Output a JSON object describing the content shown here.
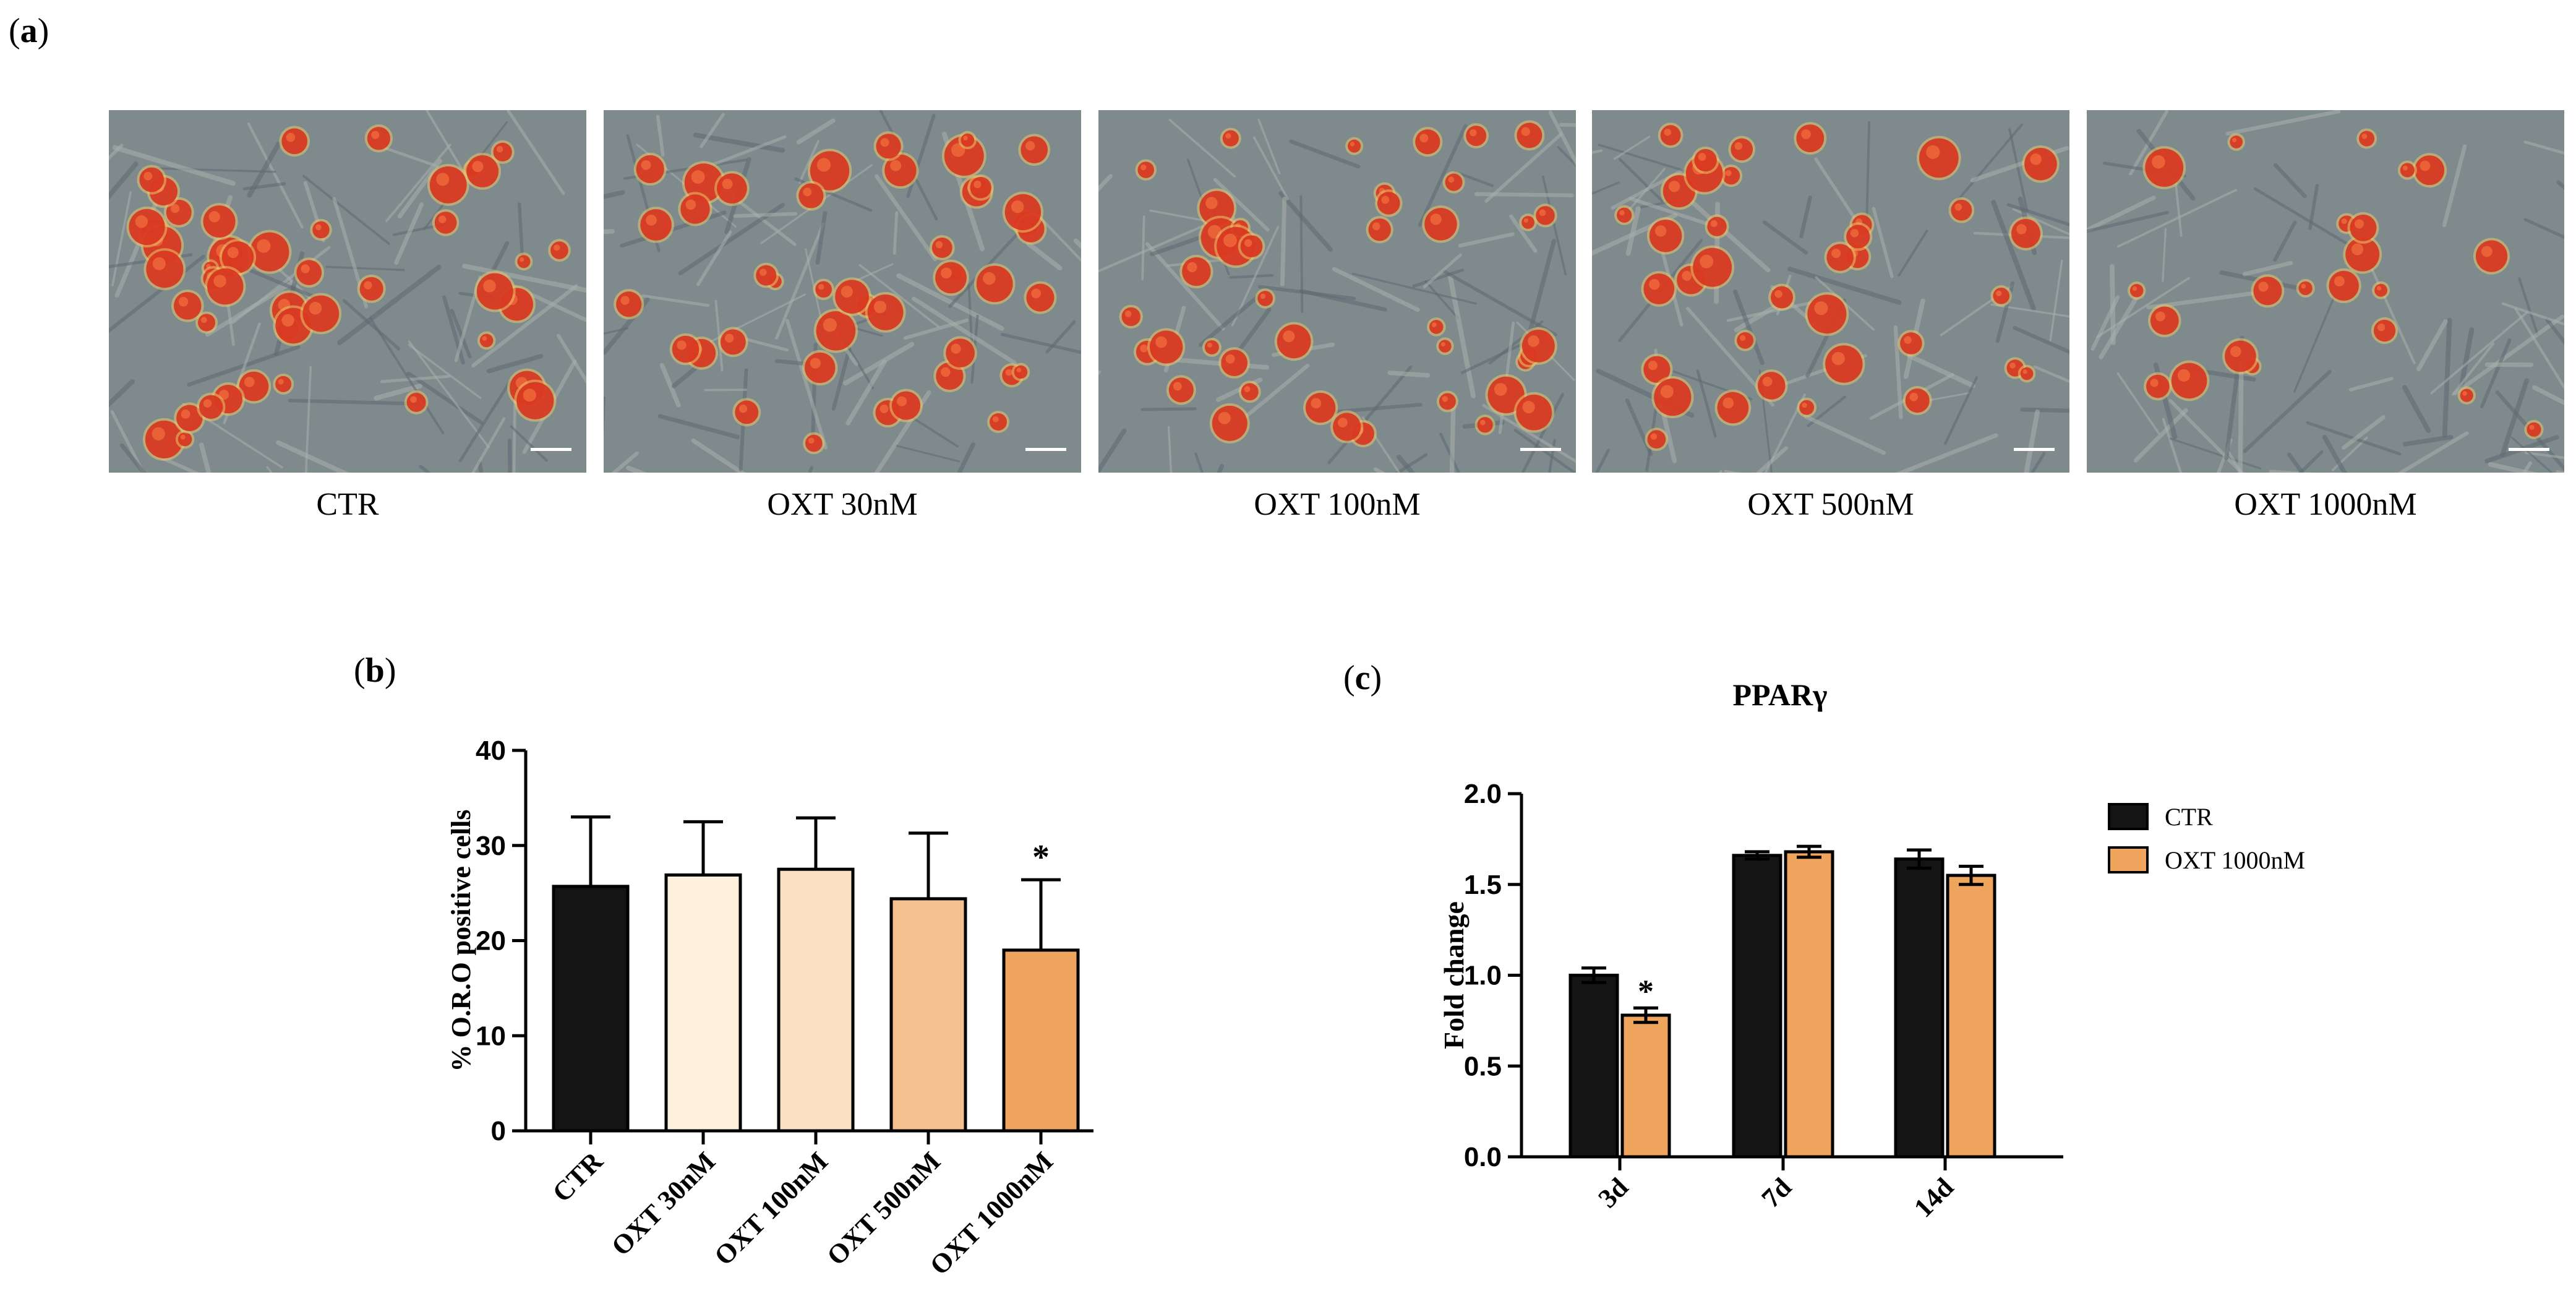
{
  "panel_labels": {
    "a": "a",
    "b": "b",
    "c": "c"
  },
  "micrographs": [
    {
      "caption": "CTR",
      "density": 0.95
    },
    {
      "caption": "OXT 30nM",
      "density": 0.9
    },
    {
      "caption": "OXT 100nM",
      "density": 0.85
    },
    {
      "caption": "OXT 500nM",
      "density": 0.75
    },
    {
      "caption": "OXT 1000nM",
      "density": 0.45
    }
  ],
  "colors": {
    "black_bar": "#141414",
    "orange_bar": "#efa55e",
    "cell_red": "#d8321e",
    "micro_bg": "#7f8a8d"
  },
  "chart_data": [
    {
      "type": "bar",
      "title": "",
      "xlabel": "",
      "ylabel": "% O.R.O positive cells",
      "ylim": [
        0,
        40
      ],
      "yticks": [
        0,
        10,
        20,
        30,
        40
      ],
      "categories": [
        "CTR",
        "OXT 30nM",
        "OXT 100nM",
        "OXT 500nM",
        "OXT 1000nM"
      ],
      "values": [
        25.7,
        26.9,
        27.5,
        24.4,
        19.0
      ],
      "errors": [
        7.3,
        5.6,
        5.4,
        6.9,
        7.4
      ],
      "bar_colors": [
        "#141414",
        "#fcf0dd",
        "#fae0c3",
        "#f4c18e",
        "#efa55e"
      ],
      "significance": [
        "",
        "",
        "",
        "",
        "*"
      ]
    },
    {
      "type": "bar",
      "title": "PPARγ",
      "xlabel": "",
      "ylabel": "Fold change",
      "ylim": [
        0,
        2.0
      ],
      "yticks": [
        "0.0",
        "0.5",
        "1.0",
        "1.5",
        "2.0"
      ],
      "categories": [
        "3d",
        "7d",
        "14d"
      ],
      "series": [
        {
          "name": "CTR",
          "color": "#141414",
          "values": [
            1.0,
            1.66,
            1.64
          ],
          "errors": [
            0.04,
            0.02,
            0.05
          ],
          "significance": [
            "",
            "",
            ""
          ]
        },
        {
          "name": "OXT 1000nM",
          "color": "#efa55e",
          "values": [
            0.78,
            1.68,
            1.55
          ],
          "errors": [
            0.04,
            0.03,
            0.05
          ],
          "significance": [
            "*",
            "",
            ""
          ]
        }
      ],
      "legend": "top-right",
      "grid": false
    }
  ]
}
